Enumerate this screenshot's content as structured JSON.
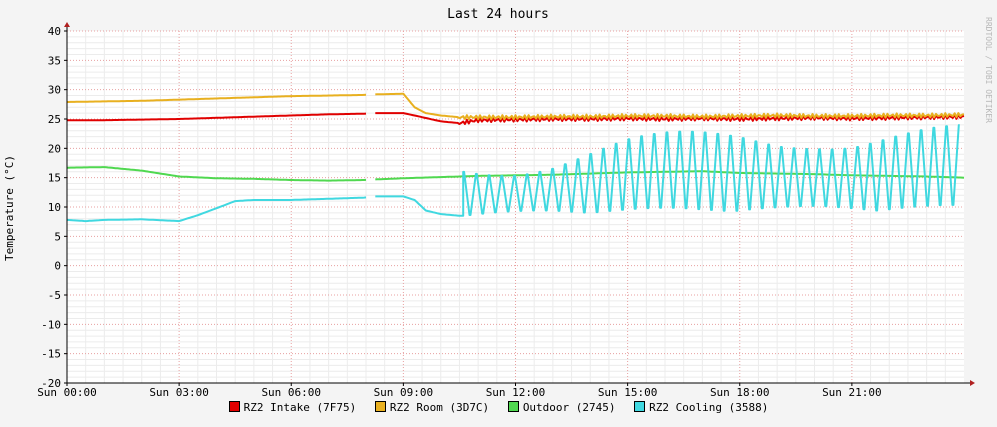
{
  "chart_data": {
    "type": "line",
    "title": "Last 24 hours",
    "ylabel": "Temperature (°C)",
    "watermark": "RRDTOOL / TOBI OETIKER",
    "xlim": [
      0,
      24
    ],
    "ylim": [
      -20,
      40
    ],
    "y_ticks": [
      -20,
      -15,
      -10,
      -5,
      0,
      5,
      10,
      15,
      20,
      25,
      30,
      35,
      40
    ],
    "x_ticks": [
      {
        "hour": 0,
        "label": "Sun 00:00"
      },
      {
        "hour": 3,
        "label": "Sun 03:00"
      },
      {
        "hour": 6,
        "label": "Sun 06:00"
      },
      {
        "hour": 9,
        "label": "Sun 09:00"
      },
      {
        "hour": 12,
        "label": "Sun 12:00"
      },
      {
        "hour": 15,
        "label": "Sun 15:00"
      },
      {
        "hour": 18,
        "label": "Sun 18:00"
      },
      {
        "hour": 21,
        "label": "Sun 21:00"
      }
    ],
    "grid": true,
    "gap": [
      8.0,
      8.2
    ],
    "series": [
      {
        "name": "RZ2 Intake (7F75)",
        "color": "#e00000",
        "x": [
          0,
          1,
          2,
          3,
          4,
          5,
          6,
          7,
          7.95,
          8.25,
          9.0,
          9.3,
          10.0,
          10.5,
          11.0,
          12.0,
          13.0,
          14.0,
          15.0,
          16.0,
          17.0,
          18.0,
          19.0,
          20.0,
          21.0,
          22.0,
          23.0,
          24.0
        ],
        "y": [
          24.8,
          24.8,
          24.9,
          25.0,
          25.2,
          25.4,
          25.6,
          25.8,
          25.9,
          26.0,
          26.0,
          25.6,
          24.6,
          24.3,
          24.8,
          24.9,
          25.0,
          25.0,
          25.1,
          25.0,
          25.1,
          25.0,
          25.1,
          25.2,
          25.1,
          25.2,
          25.3,
          25.4
        ]
      },
      {
        "name": "RZ2 Room (3D7C)",
        "color": "#e8b020",
        "x": [
          0,
          1,
          2,
          3,
          4,
          5,
          6,
          7,
          7.95,
          8.25,
          9.0,
          9.3,
          9.6,
          10.0,
          10.5,
          11.0,
          12.0,
          13.0,
          14.0,
          15.0,
          16.0,
          17.0,
          18.0,
          19.0,
          20.0,
          21.0,
          22.0,
          23.0,
          24.0
        ],
        "y": [
          27.9,
          28.0,
          28.1,
          28.3,
          28.5,
          28.7,
          28.9,
          29.0,
          29.1,
          29.2,
          29.3,
          27.0,
          26.0,
          25.6,
          25.3,
          25.3,
          25.3,
          25.4,
          25.4,
          25.5,
          25.5,
          25.4,
          25.5,
          25.6,
          25.5,
          25.5,
          25.6,
          25.6,
          25.7
        ]
      },
      {
        "name": "Outdoor (2745)",
        "color": "#50d850",
        "x": [
          0,
          1,
          2,
          3,
          4,
          5,
          6,
          7,
          7.95,
          8.25,
          9.0,
          10.0,
          11.0,
          12.0,
          13.0,
          14.0,
          15.0,
          16.0,
          17.0,
          18.0,
          19.0,
          20.0,
          21.0,
          22.0,
          23.0,
          24.0
        ],
        "y": [
          16.7,
          16.8,
          16.2,
          15.2,
          14.9,
          14.8,
          14.6,
          14.5,
          14.6,
          14.7,
          14.9,
          15.1,
          15.3,
          15.4,
          15.5,
          15.7,
          15.9,
          16.0,
          16.1,
          15.8,
          15.7,
          15.6,
          15.4,
          15.3,
          15.2,
          15.0
        ]
      },
      {
        "name": "RZ2 Cooling (3588)",
        "color": "#40d8e0",
        "x": [
          0,
          0.5,
          1,
          2,
          3,
          3.5,
          4,
          4.5,
          5,
          6,
          7,
          7.95,
          8.25,
          9.0,
          9.3,
          9.6,
          10.0,
          10.5
        ],
        "y": [
          7.8,
          7.6,
          7.8,
          7.9,
          7.6,
          8.6,
          9.8,
          11.0,
          11.2,
          11.2,
          11.4,
          11.6,
          11.8,
          11.8,
          11.2,
          9.4,
          8.8,
          8.5
        ],
        "oscillation": {
          "from": 10.6,
          "to": 24,
          "period_hours": 0.34,
          "x": [
            10.6,
            12,
            13,
            14,
            15,
            16,
            17,
            18,
            19,
            20,
            21,
            22,
            23,
            24
          ],
          "low": [
            8.2,
            8.5,
            8.8,
            9.0,
            9.0,
            9.1,
            9.1,
            9.3,
            9.3,
            9.4,
            9.4,
            9.4,
            9.5,
            9.6
          ],
          "high": [
            17.3,
            17.5,
            18.0,
            19.0,
            20.0,
            20.5,
            21.0,
            21.5,
            21.5,
            22.0,
            22.0,
            22.5,
            22.5,
            22.0
          ]
        }
      }
    ]
  }
}
